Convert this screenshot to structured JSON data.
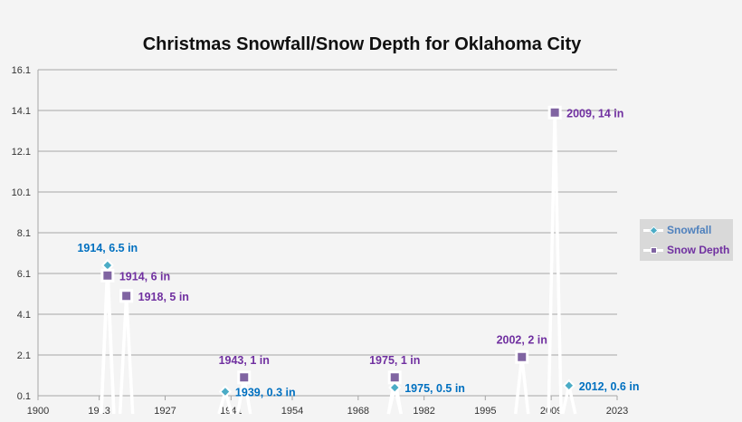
{
  "chart_data": {
    "type": "line",
    "title": "Christmas Snowfall/Snow Depth for Oklahoma City",
    "xlabel": "",
    "ylabel": "",
    "xlim": [
      1900,
      2023
    ],
    "ylim": [
      0.1,
      16.1
    ],
    "x_ticks": [
      "1900",
      "1913",
      "1927",
      "1941",
      "1954",
      "1968",
      "1982",
      "1995",
      "2009",
      "2023"
    ],
    "y_ticks": [
      "0.1",
      "2.1",
      "4.1",
      "6.1",
      "8.1",
      "10.1",
      "12.1",
      "14.1",
      "16.1"
    ],
    "grid": true,
    "legend_position": "right",
    "series": [
      {
        "name": "Snowfall",
        "marker_color": "#4bacc6",
        "label_color": "#0070c0",
        "points": [
          {
            "x": 1914,
            "y": 6.5,
            "label": "1914, 6.5 in",
            "label_position": "above"
          },
          {
            "x": 1939,
            "y": 0.3,
            "label": "1939, 0.3 in",
            "label_position": "right"
          },
          {
            "x": 1975,
            "y": 0.5,
            "label": "1975, 0.5 in",
            "label_position": "right"
          },
          {
            "x": 2012,
            "y": 0.6,
            "label": "2012, 0.6 in",
            "label_position": "right"
          }
        ]
      },
      {
        "name": "Snow Depth",
        "marker_color": "#8064a2",
        "label_color": "#7030a0",
        "points": [
          {
            "x": 1914,
            "y": 6,
            "label": "1914, 6 in",
            "label_position": "right"
          },
          {
            "x": 1918,
            "y": 5,
            "label": "1918, 5 in",
            "label_position": "right"
          },
          {
            "x": 1943,
            "y": 1,
            "label": "1943, 1 in",
            "label_position": "above"
          },
          {
            "x": 1975,
            "y": 1,
            "label": "1975, 1 in",
            "label_position": "above"
          },
          {
            "x": 2002,
            "y": 2,
            "label": "2002, 2 in",
            "label_position": "above"
          },
          {
            "x": 2009,
            "y": 14,
            "label": "2009, 14 in",
            "label_position": "right"
          }
        ]
      }
    ]
  }
}
